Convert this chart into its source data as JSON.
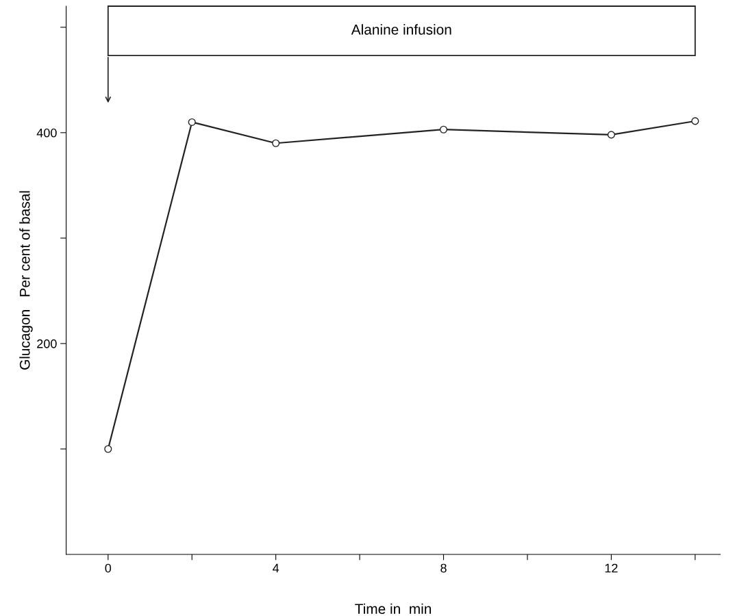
{
  "chart_data": {
    "type": "line",
    "xlabel": "Time in  min",
    "ylabel": "Glucagon   Per cent of basal",
    "x": [
      0,
      2,
      4,
      8,
      12,
      14
    ],
    "series": [
      {
        "color": "#222222",
        "values": [
          100,
          410,
          390,
          403,
          398,
          411
        ]
      }
    ],
    "xlim": [
      -1,
      14.6
    ],
    "ylim": [
      0,
      520
    ],
    "xticks": [
      0,
      {
        "value": 2,
        "label": null
      },
      4,
      {
        "value": 6,
        "label": null
      },
      8,
      {
        "value": 10,
        "label": null
      },
      12,
      {
        "value": 14,
        "label": null
      }
    ],
    "yticks": [
      {
        "value": 100,
        "label": null
      },
      200,
      {
        "value": 300,
        "label": null
      },
      400,
      {
        "value": 500,
        "label": null
      }
    ],
    "bands": [
      {
        "axis": "x",
        "from": 0,
        "to": 14,
        "label": "Alanine infusion",
        "color": "#ffffff"
      }
    ],
    "marker": "circle",
    "line_style": "solid",
    "grid": false,
    "legend": false
  }
}
